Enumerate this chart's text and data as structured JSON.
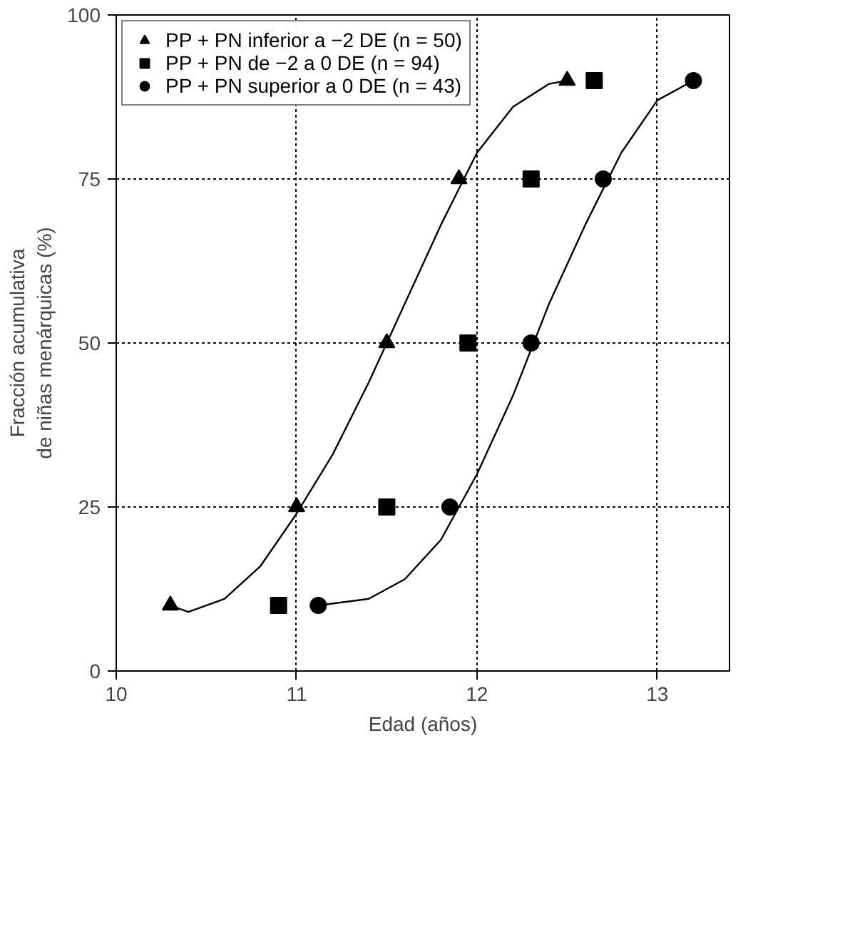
{
  "chart_data": {
    "type": "scatter",
    "xlabel": "Edad (años)",
    "ylabel": "Fracción acumulativa\nde niñas menárquicas (%)",
    "xlim": [
      10,
      13.4
    ],
    "ylim": [
      0,
      100
    ],
    "xticks": [
      10,
      11,
      12,
      13
    ],
    "yticks": [
      0,
      25,
      50,
      75,
      100
    ],
    "grid": true,
    "legend": "top left",
    "series": [
      {
        "name": "PP + PN inferior a −2 DE (n = 50)",
        "color": "#000000",
        "marker": "triangle",
        "x": [
          10.3,
          11,
          11.5,
          11.9,
          12.5
        ],
        "values": [
          10,
          25,
          50,
          75,
          90
        ]
      },
      {
        "name": "PP + PN de −2 a 0 DE (n = 94)",
        "color": "#000000",
        "marker": "square",
        "x": [
          10.9,
          11.5,
          11.95,
          12.3,
          12.65
        ],
        "values": [
          10,
          25,
          50,
          75,
          90
        ]
      },
      {
        "name": "PP + PN superior a 0 DE (n = 43)",
        "color": "#000000",
        "marker": "circle",
        "x": [
          11.12,
          11.85,
          12.3,
          12.7,
          13.2
        ],
        "values": [
          10,
          25,
          50,
          75,
          90
        ]
      },
      {
        "type": "line",
        "color": "#000000",
        "x": [
          10.3,
          10.4,
          10.6,
          10.8,
          11,
          11.2,
          11.4,
          11.6,
          11.8,
          12.0,
          12.2,
          12.4,
          12.5
        ],
        "values": [
          10,
          9,
          11,
          16,
          24,
          33,
          44,
          56,
          68,
          79,
          86,
          89.5,
          90
        ]
      },
      {
        "type": "line",
        "color": "#000000",
        "x": [
          11.12,
          11.4,
          11.6,
          11.8,
          12.0,
          12.2,
          12.4,
          12.6,
          12.8,
          13.0,
          13.2
        ],
        "values": [
          10,
          11,
          14,
          20,
          30,
          42,
          56,
          68,
          79,
          87,
          90
        ]
      }
    ]
  }
}
